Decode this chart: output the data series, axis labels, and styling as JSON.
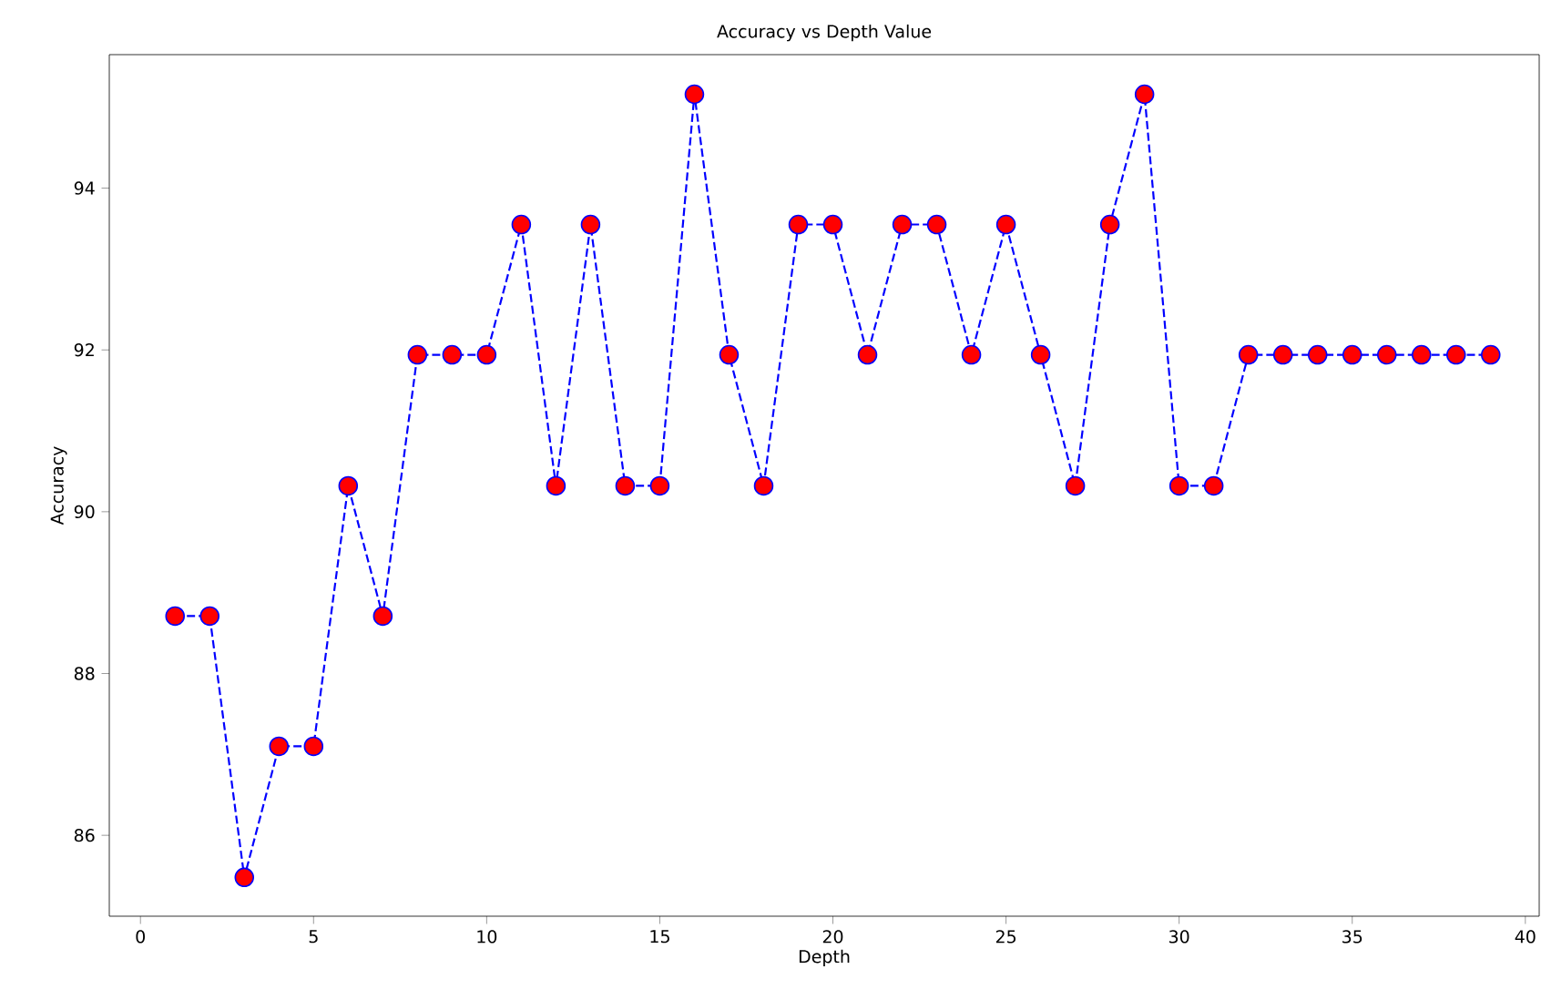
{
  "chart_data": {
    "type": "line",
    "title": "Accuracy vs Depth Value",
    "xlabel": "Depth",
    "ylabel": "Accuracy",
    "x": [
      1,
      2,
      3,
      4,
      5,
      6,
      7,
      8,
      9,
      10,
      11,
      12,
      13,
      14,
      15,
      16,
      17,
      18,
      19,
      20,
      21,
      22,
      23,
      24,
      25,
      26,
      27,
      28,
      29,
      30,
      31,
      32,
      33,
      34,
      35,
      36,
      37,
      38,
      39
    ],
    "series": [
      {
        "color": "#0000ff",
        "values": [
          88.71,
          88.71,
          85.48,
          87.1,
          87.1,
          90.32,
          88.71,
          91.94,
          91.94,
          91.94,
          93.55,
          90.32,
          93.55,
          90.32,
          90.32,
          95.16,
          91.94,
          90.32,
          93.55,
          93.55,
          91.94,
          93.55,
          93.55,
          91.94,
          93.55,
          91.94,
          90.32,
          93.55,
          95.16,
          90.32,
          90.32,
          91.94,
          91.94,
          91.94,
          91.94,
          91.94,
          91.94,
          91.94,
          91.94
        ]
      }
    ],
    "xlim": [
      -0.9,
      40.4
    ],
    "ylim": [
      85.0,
      95.65
    ],
    "xticks": [
      0,
      5,
      10,
      15,
      20,
      25,
      30,
      35,
      40
    ],
    "yticks": [
      86,
      88,
      90,
      92,
      94
    ],
    "marker": "circle",
    "line_style": "dashed"
  }
}
